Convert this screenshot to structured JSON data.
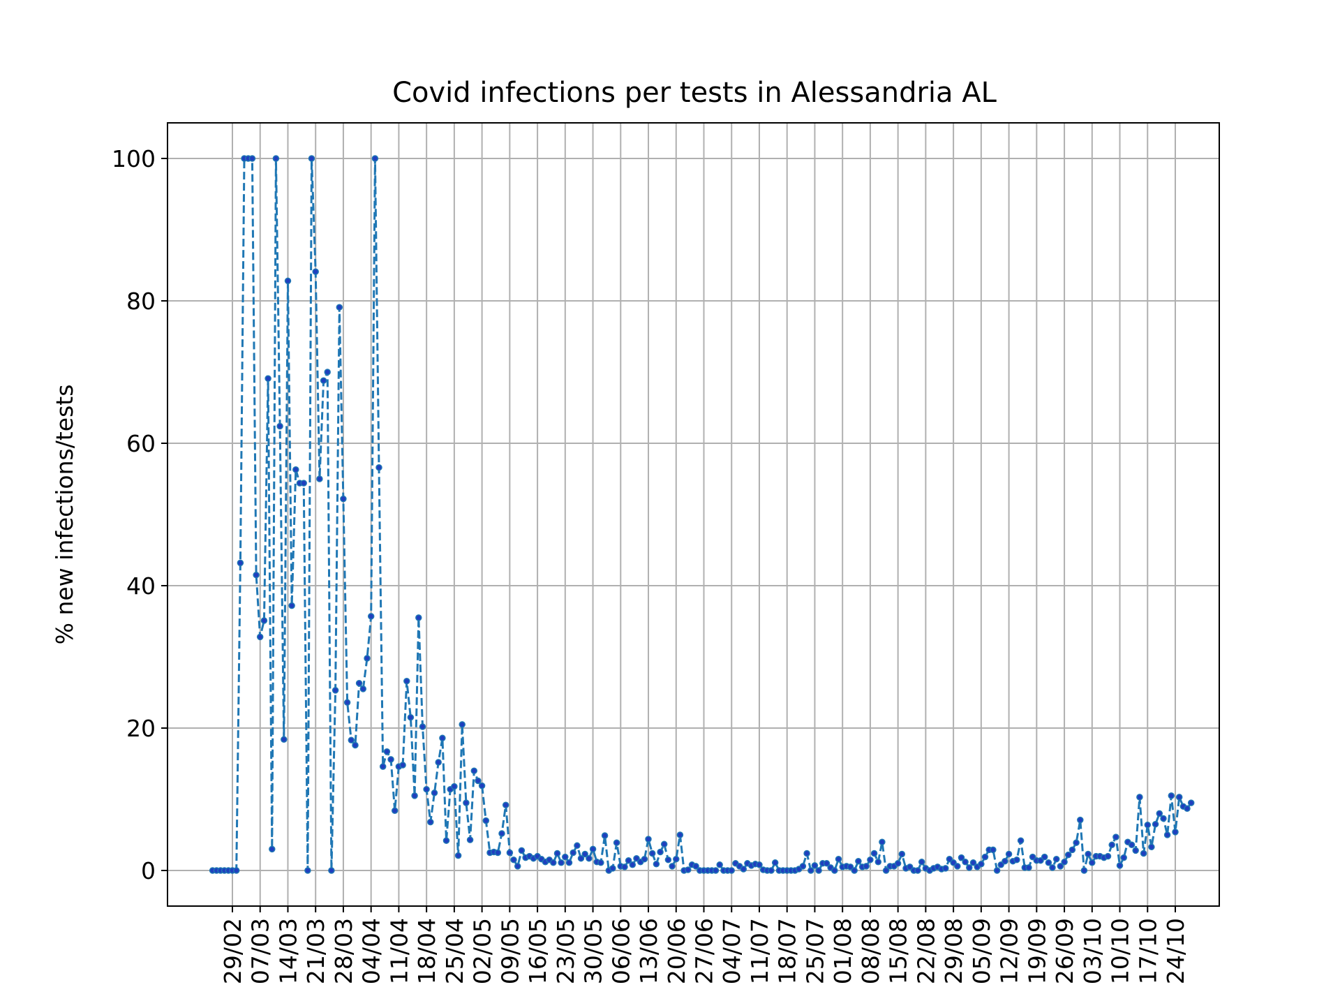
{
  "chart_data": {
    "type": "line",
    "title": "Covid infections per tests in Alessandria AL",
    "xlabel": "",
    "ylabel": "% new infections/tests",
    "ylim": [
      -5,
      105
    ],
    "y_ticks": [
      0,
      20,
      40,
      60,
      80,
      100
    ],
    "grid": true,
    "legend": "none",
    "x_ticks": [
      "29/02",
      "07/03",
      "14/03",
      "21/03",
      "28/03",
      "04/04",
      "11/04",
      "18/04",
      "25/04",
      "02/05",
      "09/05",
      "16/05",
      "23/05",
      "30/05",
      "06/06",
      "13/06",
      "20/06",
      "27/06",
      "04/07",
      "11/07",
      "18/07",
      "25/07",
      "01/08",
      "08/08",
      "15/08",
      "22/08",
      "29/08",
      "05/09",
      "12/09",
      "19/09",
      "26/09",
      "03/10",
      "10/10",
      "17/10",
      "24/10"
    ],
    "x_start": "2020-02-24",
    "colors": {
      "line": "#1f77b4",
      "marker": "#1f3fbf"
    },
    "series": [
      {
        "values": [
          0,
          0,
          0,
          0,
          0,
          0,
          0,
          43.2,
          100,
          100,
          100,
          41.5,
          32.8,
          35.1,
          69.1,
          3.0,
          100,
          62.4,
          18.4,
          82.8,
          37.2,
          56.3,
          54.4,
          54.4,
          0,
          100,
          84.1,
          55,
          68.8,
          70,
          0,
          25.3,
          79.1,
          52.2,
          23.6,
          18.3,
          17.6,
          26.3,
          25.5,
          29.8,
          35.7,
          100,
          56.6,
          14.6,
          16.7,
          15.6,
          8.4,
          14.6,
          14.8,
          26.6,
          21.5,
          10.5,
          35.5,
          20.2,
          11.4,
          6.8,
          10.9,
          15.2,
          18.6,
          4.2,
          11.4,
          11.8,
          2.1,
          20.5,
          9.5,
          4.3,
          14,
          12.6,
          11.9,
          7,
          2.5,
          2.6,
          2.5,
          5.2,
          9.2,
          2.5,
          1.5,
          0.6,
          2.8,
          1.8,
          2,
          1.7,
          2,
          1.6,
          1.2,
          1.5,
          1.1,
          2.4,
          1.1,
          1.9,
          1.1,
          2.5,
          3.5,
          1.7,
          2.3,
          1.7,
          3,
          1.2,
          1.1,
          4.9,
          0,
          0.3,
          3.9,
          0.6,
          0.5,
          1.4,
          0.8,
          1.7,
          1.2,
          1.6,
          4.4,
          2.4,
          0.9,
          2.6,
          3.7,
          1.5,
          0.6,
          1.6,
          5,
          0,
          0.1,
          0.8,
          0.6,
          0,
          0,
          0,
          0,
          0,
          0.8,
          0,
          0,
          0,
          1,
          0.6,
          0.2,
          1,
          0.7,
          0.9,
          0.8,
          0.1,
          0,
          0,
          1.1,
          0,
          0,
          0,
          0,
          0,
          0.2,
          0.6,
          2.4,
          0,
          0.7,
          0,
          1,
          1,
          0.4,
          0,
          1.6,
          0.5,
          0.6,
          0.5,
          0,
          1.3,
          0.5,
          0.6,
          1.5,
          2.4,
          1.2,
          4,
          0,
          0.6,
          0.6,
          1,
          2.3,
          0.3,
          0.5,
          0,
          0,
          1.2,
          0.3,
          0,
          0.3,
          0.5,
          0.2,
          0.3,
          1.6,
          1.1,
          0.6,
          1.8,
          1.2,
          0.4,
          1.1,
          0.5,
          0.9,
          1.9,
          2.9,
          2.9,
          0,
          0.8,
          1.3,
          2.3,
          1.3,
          1.5,
          4.2,
          0.4,
          0.4,
          1.9,
          1.4,
          1.4,
          1.9,
          1.1,
          0.4,
          1.6,
          0.6,
          1.2,
          2.2,
          2.9,
          3.9,
          7.1,
          0,
          2.3,
          1.1,
          2,
          2,
          1.8,
          2,
          3.6,
          4.7,
          0.7,
          1.8,
          4,
          3.6,
          2.8,
          10.3,
          2.4,
          6.4,
          3.3,
          6.5,
          8,
          7.3,
          5,
          10.5,
          5.4,
          10.3,
          9,
          8.7,
          9.5
        ]
      }
    ]
  }
}
